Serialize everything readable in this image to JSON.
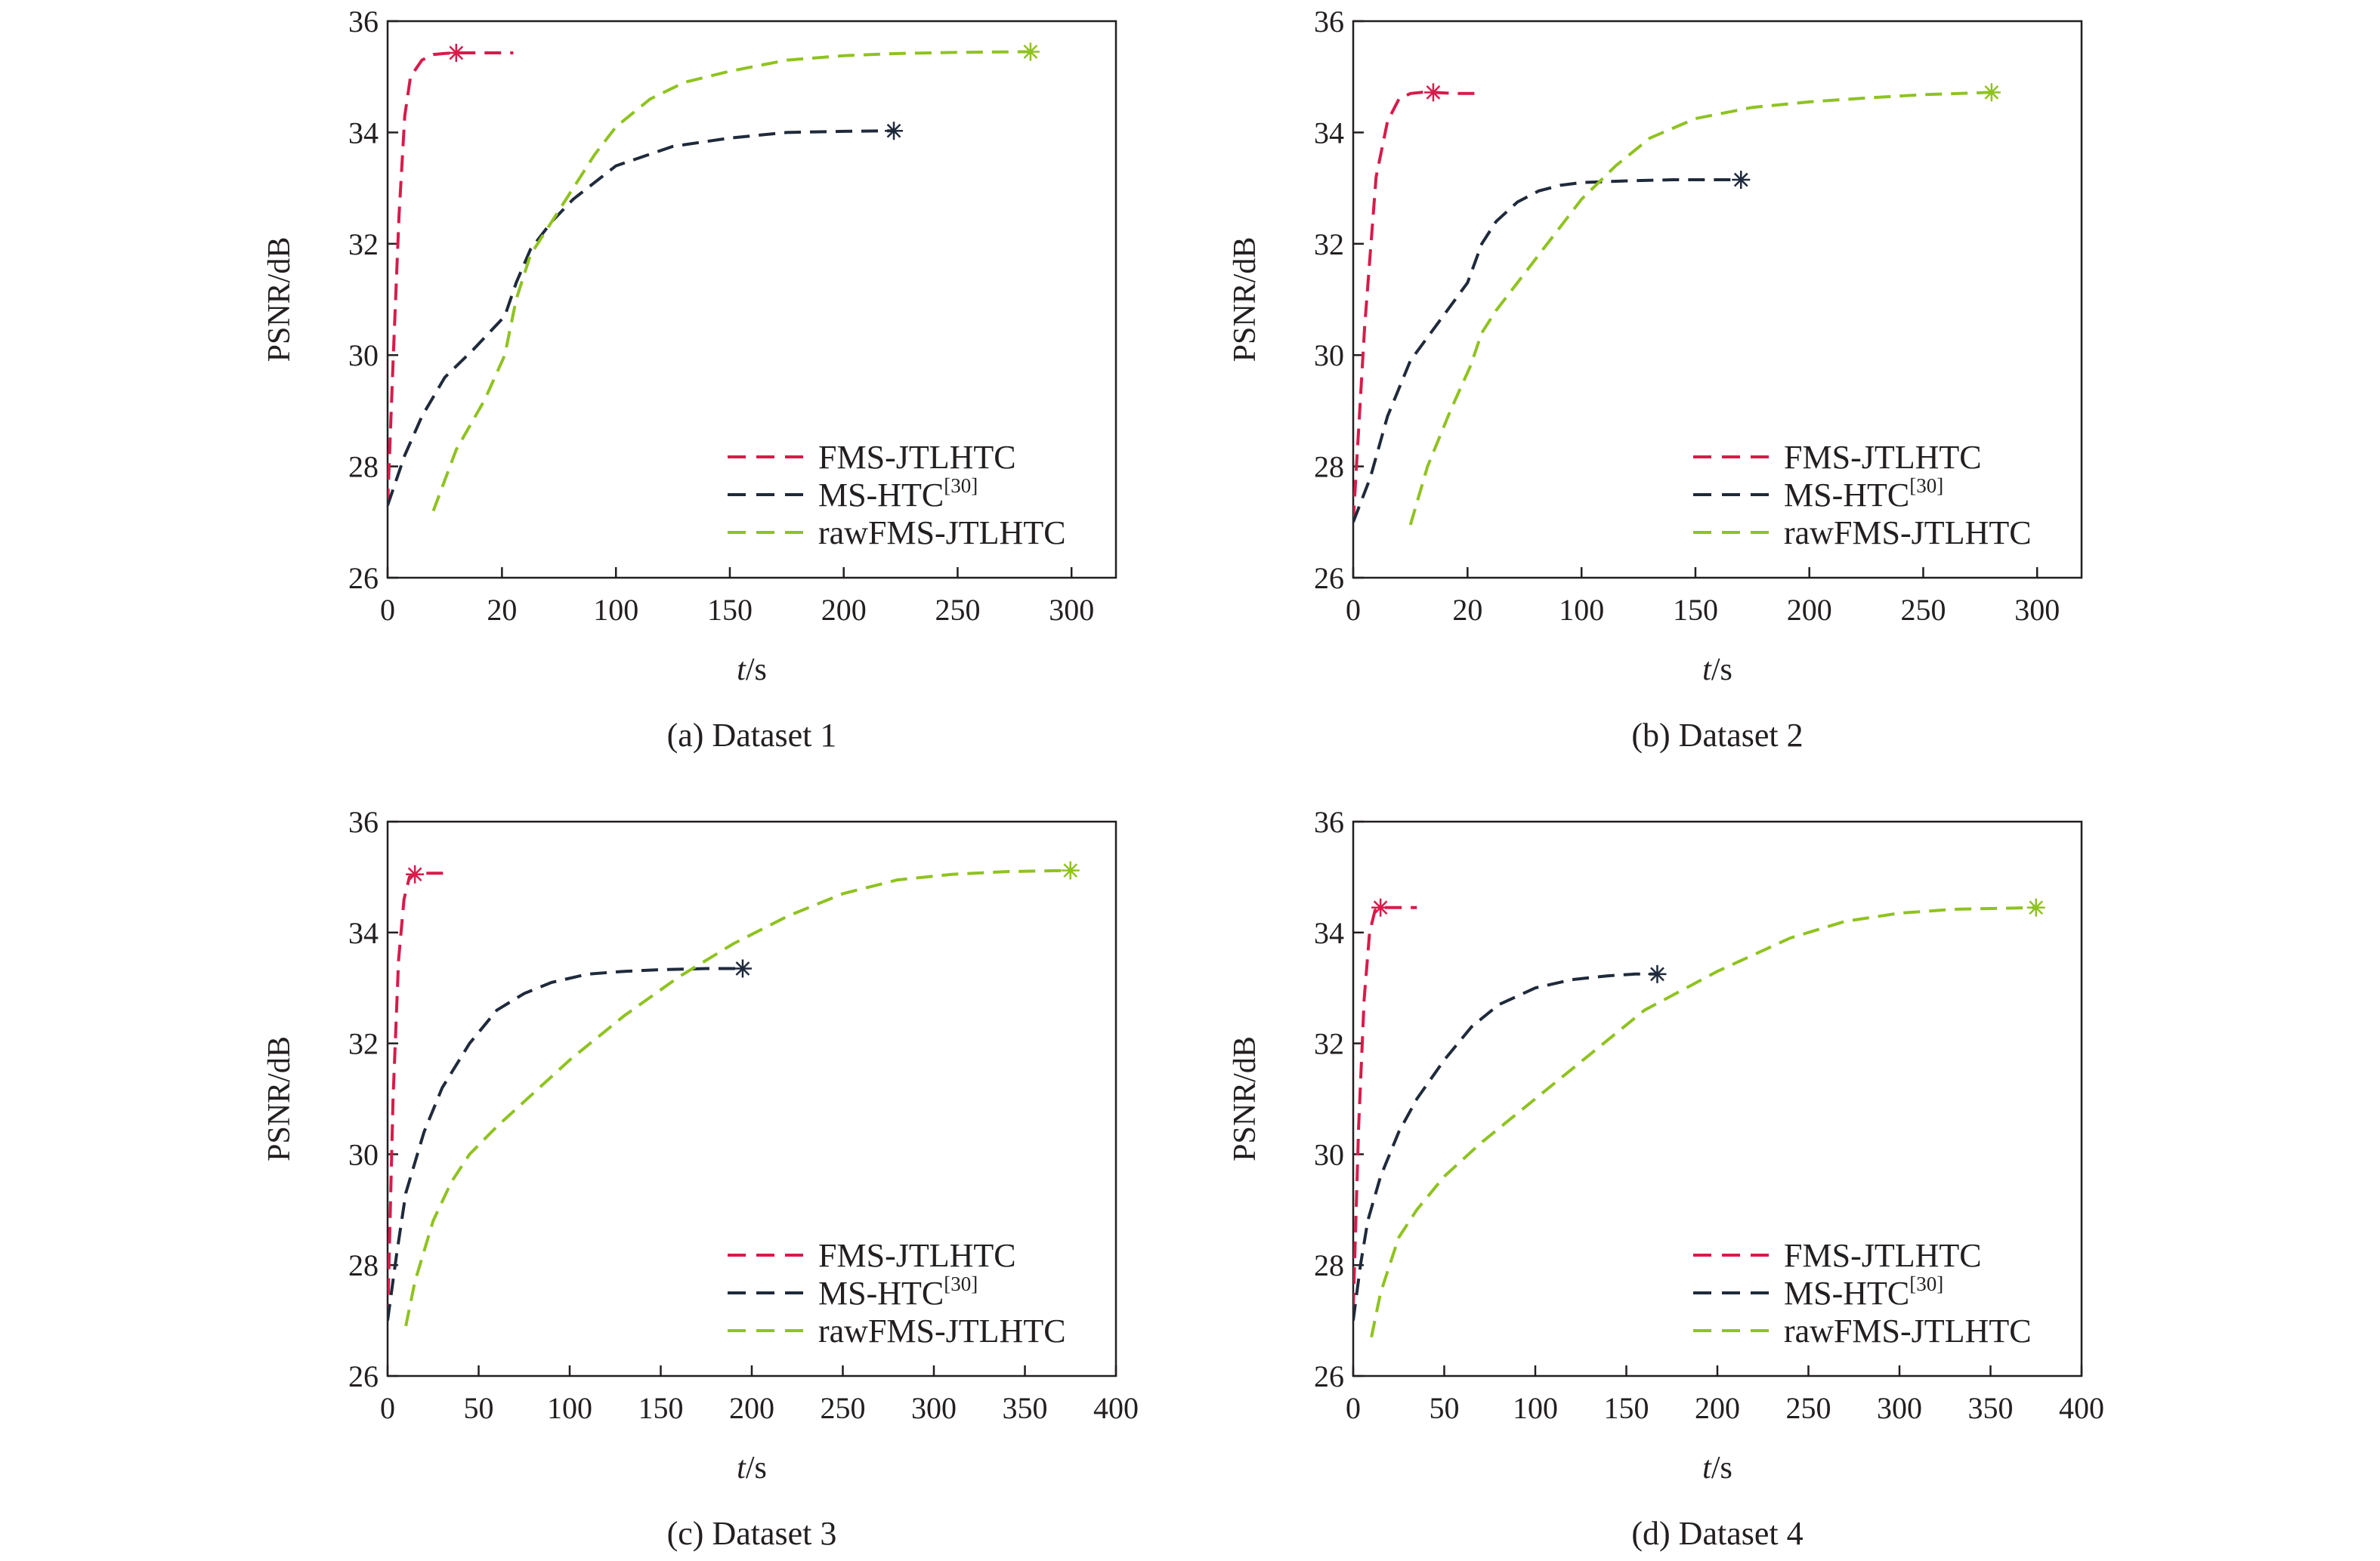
{
  "chart_data": [
    {
      "type": "line",
      "caption": "(a) Dataset 1",
      "xlabel_italic": "t",
      "xlabel_rest": "/s",
      "ylabel": "PSNR/dB",
      "ylim": [
        26,
        36
      ],
      "yticks": [
        "26",
        "28",
        "30",
        "32",
        "34",
        "36"
      ],
      "xticks": [
        "0",
        "20",
        "100",
        "150",
        "200",
        "250",
        "300"
      ],
      "x_axis_note": "non-linear axis: first interval labelled 0 to 20, then 100 to 300 in steps of 50",
      "grid": false,
      "legend_position": "bottom-right",
      "series": [
        {
          "name": "FMS-JTLHTC",
          "color": "#d81b4a",
          "x": [
            0,
            1,
            2,
            3,
            4,
            6,
            8,
            10,
            12,
            16,
            20,
            28
          ],
          "y": [
            27.3,
            30.0,
            32.5,
            34.3,
            35.0,
            35.3,
            35.4,
            35.42,
            35.43,
            35.43,
            35.43,
            35.43
          ],
          "end_marker": {
            "x": 12,
            "y": 35.43
          }
        },
        {
          "name": "MS-HTC[30]",
          "color": "#1f2a3c",
          "x": [
            0,
            3,
            6,
            10,
            15,
            22,
            30,
            40,
            55,
            70,
            85,
            100,
            125,
            150,
            175,
            200,
            222
          ],
          "y": [
            27.3,
            28.2,
            28.9,
            29.6,
            30.1,
            30.7,
            31.3,
            31.9,
            32.4,
            32.8,
            33.1,
            33.4,
            33.75,
            33.9,
            34.0,
            34.02,
            34.03
          ],
          "end_marker": {
            "x": 222,
            "y": 34.03
          }
        },
        {
          "name": "rawFMS-JTLHTC",
          "color": "#8fc31f",
          "x": [
            8,
            12,
            17,
            22,
            30,
            40,
            55,
            70,
            85,
            100,
            115,
            130,
            150,
            175,
            200,
            225,
            250,
            282
          ],
          "y": [
            27.2,
            28.3,
            29.2,
            30.0,
            31.0,
            31.8,
            32.4,
            33.0,
            33.6,
            34.1,
            34.6,
            34.9,
            35.1,
            35.3,
            35.38,
            35.42,
            35.44,
            35.45
          ],
          "end_marker": {
            "x": 282,
            "y": 35.45
          }
        }
      ]
    },
    {
      "type": "line",
      "caption": "(b) Dataset 2",
      "xlabel_italic": "t",
      "xlabel_rest": "/s",
      "ylabel": "PSNR/dB",
      "ylim": [
        26,
        36
      ],
      "yticks": [
        "26",
        "28",
        "30",
        "32",
        "34",
        "36"
      ],
      "xticks": [
        "0",
        "20",
        "100",
        "150",
        "200",
        "250",
        "300"
      ],
      "x_axis_note": "non-linear axis: first interval labelled 0 to 20, then 100 to 300 in steps of 50",
      "grid": false,
      "legend_position": "bottom-right",
      "series": [
        {
          "name": "FMS-JTLHTC",
          "color": "#d81b4a",
          "x": [
            0,
            2,
            4,
            6,
            8,
            10,
            12,
            14,
            18,
            26
          ],
          "y": [
            27.0,
            30.5,
            33.2,
            34.2,
            34.6,
            34.7,
            34.72,
            34.72,
            34.7,
            34.7
          ],
          "end_marker": {
            "x": 14,
            "y": 34.72
          }
        },
        {
          "name": "MS-HTC[30]",
          "color": "#1f2a3c",
          "x": [
            0,
            3,
            6,
            10,
            15,
            20,
            30,
            40,
            55,
            70,
            85,
            100,
            120,
            140,
            160,
            170
          ],
          "y": [
            27.0,
            27.8,
            28.9,
            29.9,
            30.6,
            31.3,
            32.0,
            32.4,
            32.75,
            32.95,
            33.05,
            33.1,
            33.13,
            33.15,
            33.15,
            33.15
          ],
          "end_marker": {
            "x": 170,
            "y": 33.15
          }
        },
        {
          "name": "rawFMS-JTLHTC",
          "color": "#8fc31f",
          "x": [
            10,
            13,
            17,
            22,
            30,
            40,
            55,
            70,
            85,
            100,
            115,
            130,
            150,
            175,
            200,
            225,
            250,
            280
          ],
          "y": [
            26.95,
            28.0,
            29.0,
            29.8,
            30.4,
            30.8,
            31.3,
            31.8,
            32.3,
            32.8,
            33.4,
            33.9,
            34.25,
            34.45,
            34.55,
            34.62,
            34.68,
            34.72
          ],
          "end_marker": {
            "x": 280,
            "y": 34.72
          }
        }
      ]
    },
    {
      "type": "line",
      "caption": "(c) Dataset 3",
      "xlabel_italic": "t",
      "xlabel_rest": "/s",
      "ylabel": "PSNR/dB",
      "ylim": [
        26,
        36
      ],
      "xlim": [
        0,
        400
      ],
      "yticks": [
        "26",
        "28",
        "30",
        "32",
        "34",
        "36"
      ],
      "xticks": [
        "0",
        "50",
        "100",
        "150",
        "200",
        "250",
        "300",
        "350",
        "400"
      ],
      "grid": false,
      "legend_position": "bottom-right",
      "series": [
        {
          "name": "FMS-JTLHTC",
          "color": "#d81b4a",
          "x": [
            0,
            3,
            6,
            9,
            12,
            15,
            20,
            25,
            35
          ],
          "y": [
            27.0,
            31.0,
            33.5,
            34.6,
            35.0,
            35.05,
            35.07,
            35.07,
            35.07
          ],
          "end_marker": {
            "x": 15,
            "y": 35.05
          }
        },
        {
          "name": "MS-HTC[30]",
          "color": "#1f2a3c",
          "x": [
            0,
            5,
            10,
            20,
            30,
            45,
            60,
            75,
            90,
            110,
            130,
            150,
            175,
            195
          ],
          "y": [
            27.0,
            28.2,
            29.3,
            30.4,
            31.2,
            32.0,
            32.6,
            32.9,
            33.1,
            33.25,
            33.3,
            33.33,
            33.35,
            33.35
          ],
          "end_marker": {
            "x": 195,
            "y": 33.35
          }
        },
        {
          "name": "rawFMS-JTLHTC",
          "color": "#8fc31f",
          "x": [
            10,
            15,
            25,
            35,
            45,
            60,
            80,
            100,
            130,
            160,
            190,
            220,
            250,
            280,
            310,
            340,
            375
          ],
          "y": [
            26.9,
            27.7,
            28.8,
            29.5,
            30.0,
            30.5,
            31.1,
            31.7,
            32.5,
            33.2,
            33.8,
            34.3,
            34.7,
            34.95,
            35.05,
            35.1,
            35.12
          ],
          "end_marker": {
            "x": 375,
            "y": 35.12
          }
        }
      ]
    },
    {
      "type": "line",
      "caption": "(d) Dataset 4",
      "xlabel_italic": "t",
      "xlabel_rest": "/s",
      "ylabel": "PSNR/dB",
      "ylim": [
        26,
        36
      ],
      "xlim": [
        0,
        400
      ],
      "yticks": [
        "26",
        "28",
        "30",
        "32",
        "34",
        "36"
      ],
      "xticks": [
        "0",
        "50",
        "100",
        "150",
        "200",
        "250",
        "300",
        "350",
        "400"
      ],
      "grid": false,
      "legend_position": "bottom-right",
      "series": [
        {
          "name": "FMS-JTLHTC",
          "color": "#d81b4a",
          "x": [
            0,
            3,
            6,
            9,
            12,
            15,
            20,
            30,
            35
          ],
          "y": [
            27.2,
            30.5,
            32.8,
            34.0,
            34.4,
            34.45,
            34.45,
            34.45,
            34.45
          ],
          "end_marker": {
            "x": 15,
            "y": 34.45
          }
        },
        {
          "name": "MS-HTC[30]",
          "color": "#1f2a3c",
          "x": [
            0,
            4,
            8,
            15,
            25,
            35,
            50,
            65,
            80,
            100,
            120,
            140,
            155,
            167
          ],
          "y": [
            27.0,
            28.0,
            28.8,
            29.6,
            30.4,
            31.0,
            31.7,
            32.3,
            32.7,
            33.0,
            33.15,
            33.22,
            33.25,
            33.25
          ],
          "end_marker": {
            "x": 167,
            "y": 33.25
          }
        },
        {
          "name": "rawFMS-JTLHTC",
          "color": "#8fc31f",
          "x": [
            10,
            15,
            25,
            35,
            50,
            70,
            100,
            130,
            160,
            200,
            240,
            270,
            300,
            330,
            375
          ],
          "y": [
            26.7,
            27.5,
            28.5,
            29.0,
            29.6,
            30.2,
            31.0,
            31.8,
            32.6,
            33.3,
            33.9,
            34.2,
            34.35,
            34.42,
            34.45
          ],
          "end_marker": {
            "x": 375,
            "y": 34.45
          }
        }
      ]
    }
  ]
}
